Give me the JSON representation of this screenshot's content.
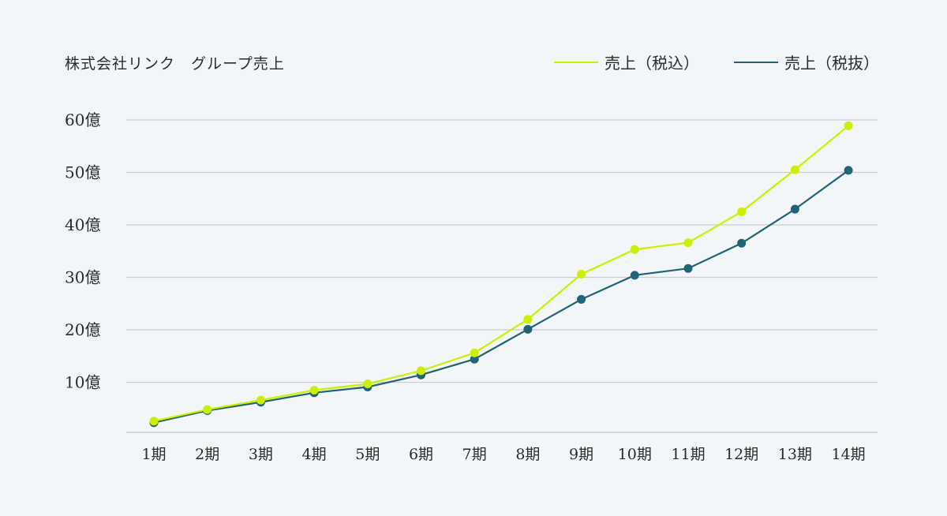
{
  "title": "株式会社リンク　グループ売上",
  "legend": [
    {
      "label": "売上（税込）",
      "color": "#ccf000"
    },
    {
      "label": "売上（税抜）",
      "color": "#1f6477"
    }
  ],
  "colors": {
    "background": "#f2f6f8",
    "grid": "#c9cdd0",
    "tax_included": "#ccf000",
    "tax_excluded": "#1f6477"
  },
  "chart_data": {
    "type": "line",
    "title": "株式会社リンク　グループ売上",
    "xlabel": "",
    "ylabel": "",
    "categories": [
      "1期",
      "2期",
      "3期",
      "4期",
      "5期",
      "6期",
      "7期",
      "8期",
      "9期",
      "10期",
      "11期",
      "12期",
      "13期",
      "14期"
    ],
    "series": [
      {
        "name": "売上（税込）",
        "color": "#ccf000",
        "values": [
          2.6,
          4.8,
          6.6,
          8.5,
          9.7,
          12.2,
          15.6,
          22.0,
          30.6,
          35.3,
          36.6,
          42.5,
          50.5,
          58.9
        ]
      },
      {
        "name": "売上（税抜）",
        "color": "#1f6477",
        "values": [
          2.3,
          4.6,
          6.2,
          8.0,
          9.1,
          11.4,
          14.4,
          20.1,
          25.8,
          30.4,
          31.7,
          36.5,
          43.0,
          50.4
        ]
      }
    ],
    "yticks": [
      10,
      20,
      30,
      40,
      50,
      60
    ],
    "ytick_labels": [
      "10億",
      "20億",
      "30億",
      "40億",
      "50億",
      "60億"
    ],
    "ylim": [
      0,
      60
    ],
    "unit": "億",
    "grid": true,
    "legend_position": "top-right"
  }
}
